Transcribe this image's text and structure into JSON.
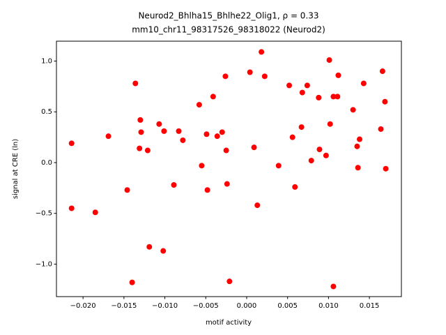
{
  "chart_data": {
    "type": "scatter",
    "title": "Neurod2_Bhlha15_Bhlhe22_Olig1, ρ = 0.33",
    "subtitle": "mm10_chr11_98317526_98318022 (Neurod2)",
    "xlabel": "motif activity",
    "ylabel": "signal at CRE (ln)",
    "color": "#ff0000",
    "xlim": [
      -0.02325,
      0.01891
    ],
    "ylim": [
      -1.32,
      1.196
    ],
    "xticks": [
      {
        "value": -0.02,
        "label": "−0.020"
      },
      {
        "value": -0.015,
        "label": "−0.015"
      },
      {
        "value": -0.01,
        "label": "−0.010"
      },
      {
        "value": -0.005,
        "label": "−0.005"
      },
      {
        "value": 0,
        "label": "0.000"
      },
      {
        "value": 0.005,
        "label": "0.005"
      },
      {
        "value": 0.01,
        "label": "0.010"
      },
      {
        "value": 0.015,
        "label": "0.015"
      }
    ],
    "yticks": [
      {
        "value": -1,
        "label": "−1.0"
      },
      {
        "value": -0.5,
        "label": "−0.5"
      },
      {
        "value": 0,
        "label": "0.0"
      },
      {
        "value": 0.5,
        "label": "0.5"
      },
      {
        "value": 1,
        "label": "1.0"
      }
    ],
    "x": [
      -0.0214,
      -0.0214,
      -0.0185,
      -0.0169,
      -0.0146,
      -0.014,
      -0.0136,
      -0.013,
      -0.0131,
      -0.0129,
      -0.0121,
      -0.0119,
      -0.0107,
      -0.0102,
      -0.0101,
      -0.0089,
      -0.0083,
      -0.0078,
      -0.0058,
      -0.0055,
      -0.0049,
      -0.0048,
      -0.0041,
      -0.0036,
      -0.003,
      -0.0026,
      -0.0025,
      -0.0024,
      -0.0021,
      0.0004,
      0.0009,
      0.0013,
      0.0018,
      0.0022,
      0.0039,
      0.0052,
      0.0056,
      0.0059,
      0.0067,
      0.0068,
      0.0074,
      0.0079,
      0.0088,
      0.0089,
      0.0097,
      0.0101,
      0.0102,
      0.0106,
      0.0106,
      0.0111,
      0.0112,
      0.013,
      0.0135,
      0.0136,
      0.0138,
      0.0143,
      0.0164,
      0.0166,
      0.0169,
      0.017
    ],
    "values": [
      0.19,
      -0.45,
      -0.49,
      0.26,
      -0.27,
      -1.18,
      0.78,
      0.42,
      0.14,
      0.3,
      0.12,
      -0.83,
      0.38,
      -0.87,
      0.31,
      -0.22,
      0.31,
      0.22,
      0.57,
      -0.03,
      0.28,
      -0.27,
      0.65,
      0.26,
      0.3,
      0.85,
      0.12,
      -0.21,
      -1.17,
      0.89,
      0.15,
      -0.42,
      1.09,
      0.85,
      -0.03,
      0.76,
      0.25,
      -0.24,
      0.35,
      0.69,
      0.76,
      0.02,
      0.64,
      0.13,
      0.07,
      1.01,
      0.38,
      -1.22,
      0.65,
      0.65,
      0.86,
      0.52,
      0.16,
      -0.05,
      0.23,
      0.78,
      0.33,
      0.9,
      0.6,
      -0.06
    ]
  }
}
